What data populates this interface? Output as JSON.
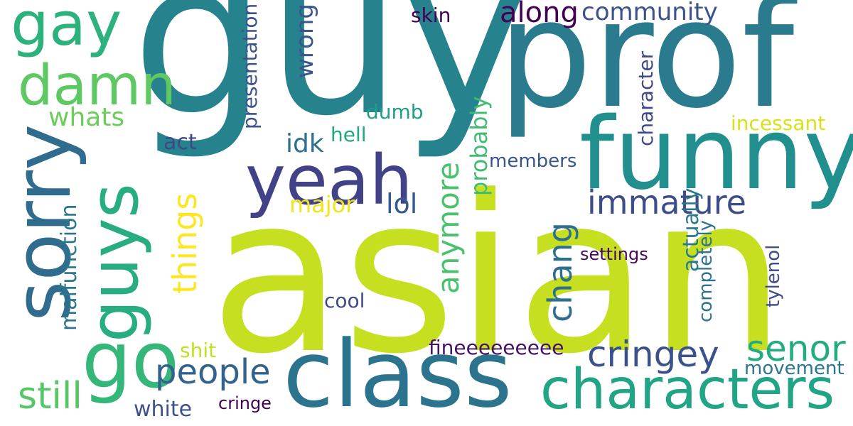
{
  "words": [
    {
      "text": "guy",
      "color": "#26838e"
    },
    {
      "text": "prof",
      "color": "#2b7b8e"
    },
    {
      "text": "asian",
      "color": "#c6e021"
    },
    {
      "text": "funny",
      "color": "#218f8d"
    },
    {
      "text": "class",
      "color": "#2c738e"
    },
    {
      "text": "characters",
      "color": "#21a585"
    },
    {
      "text": "yeah",
      "color": "#414287"
    },
    {
      "text": "sorry",
      "color": "#2f6c8e"
    },
    {
      "text": "guys",
      "color": "#27ad81"
    },
    {
      "text": "go",
      "color": "#35b779"
    },
    {
      "text": "gay",
      "color": "#2db27d"
    },
    {
      "text": "damn",
      "color": "#5ec962"
    },
    {
      "text": "whats",
      "color": "#6ccd5a"
    },
    {
      "text": "cringey",
      "color": "#3b518b"
    },
    {
      "text": "people",
      "color": "#33638d"
    },
    {
      "text": "senor",
      "color": "#25ab82"
    },
    {
      "text": "immature",
      "color": "#3e4c8a"
    },
    {
      "text": "still",
      "color": "#56c667"
    },
    {
      "text": "things",
      "color": "#fde725"
    },
    {
      "text": "chang",
      "color": "#2e6f8e"
    },
    {
      "text": "anymore",
      "color": "#4ac16d"
    },
    {
      "text": "community",
      "color": "#3b528b"
    },
    {
      "text": "along",
      "color": "#440154"
    },
    {
      "text": "wrong",
      "color": "#39558c"
    },
    {
      "text": "presentation",
      "color": "#3b528b"
    },
    {
      "text": "probably",
      "color": "#3fbc73"
    },
    {
      "text": "character",
      "color": "#3f4889"
    },
    {
      "text": "incessant",
      "color": "#d8e219"
    },
    {
      "text": "actually",
      "color": "#2a788e"
    },
    {
      "text": "malfunction",
      "color": "#2a768e"
    },
    {
      "text": "idk",
      "color": "#2d708e"
    },
    {
      "text": "major",
      "color": "#f1e51d"
    },
    {
      "text": "lol",
      "color": "#365c8d"
    },
    {
      "text": "dumb",
      "color": "#1f9e89"
    },
    {
      "text": "hell",
      "color": "#22a785"
    },
    {
      "text": "act",
      "color": "#3e4989"
    },
    {
      "text": "skin",
      "color": "#440154"
    },
    {
      "text": "members",
      "color": "#39568c"
    },
    {
      "text": "settings",
      "color": "#46085c"
    },
    {
      "text": "completely",
      "color": "#2c728e"
    },
    {
      "text": "tylenol",
      "color": "#3e4a89"
    },
    {
      "text": "cool",
      "color": "#3e4a89"
    },
    {
      "text": "fineeeeeeeee",
      "color": "#471164"
    },
    {
      "text": "movement",
      "color": "#2a768e"
    },
    {
      "text": "shit",
      "color": "#c2df23"
    },
    {
      "text": "white",
      "color": "#3b528b"
    },
    {
      "text": "cringe",
      "color": "#440154"
    }
  ]
}
